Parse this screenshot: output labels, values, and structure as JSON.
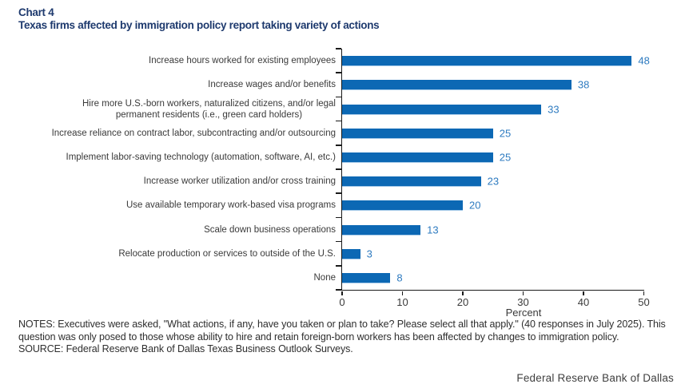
{
  "header": {
    "chart_number": "Chart 4",
    "title": "Texas firms affected by immigration policy report taking variety of actions"
  },
  "chart_data": {
    "type": "bar",
    "orientation": "horizontal",
    "categories": [
      "Increase hours worked for existing employees",
      "Increase wages and/or benefits",
      "Hire more U.S.-born workers, naturalized citizens, and/or legal\npermanent residents (i.e., green card holders)",
      "Increase reliance on contract labor, subcontracting and/or outsourcing",
      "Implement labor-saving technology (automation, software, AI, etc.)",
      "Increase worker utilization and/or cross training",
      "Use available temporary work-based visa programs",
      "Scale down business operations",
      "Relocate production or services to outside of the U.S.",
      "None"
    ],
    "values": [
      48,
      38,
      33,
      25,
      25,
      23,
      20,
      13,
      3,
      8
    ],
    "xlabel": "Percent",
    "xticks": [
      0,
      10,
      20,
      30,
      40,
      50
    ],
    "xlim": [
      0,
      50
    ],
    "grid": false,
    "legend": false,
    "value_labels_shown": true
  },
  "colors": {
    "title": "#1e3a6e",
    "bar": "#0c68b4",
    "value_label": "#2e7bc0",
    "axis": "#1a1a1a"
  },
  "notes": {
    "notes_text": "NOTES: Executives were asked, \"What actions, if any, have you taken or plan to take? Please select all that apply.\" (40 responses in July 2025). This question was only posed to those whose ability to hire and retain foreign-born workers has been affected by changes to immigration policy.",
    "source_text": "SOURCE: Federal Reserve Bank of Dallas Texas Business Outlook Surveys."
  },
  "footer": {
    "brand": "Federal Reserve Bank of Dallas"
  }
}
